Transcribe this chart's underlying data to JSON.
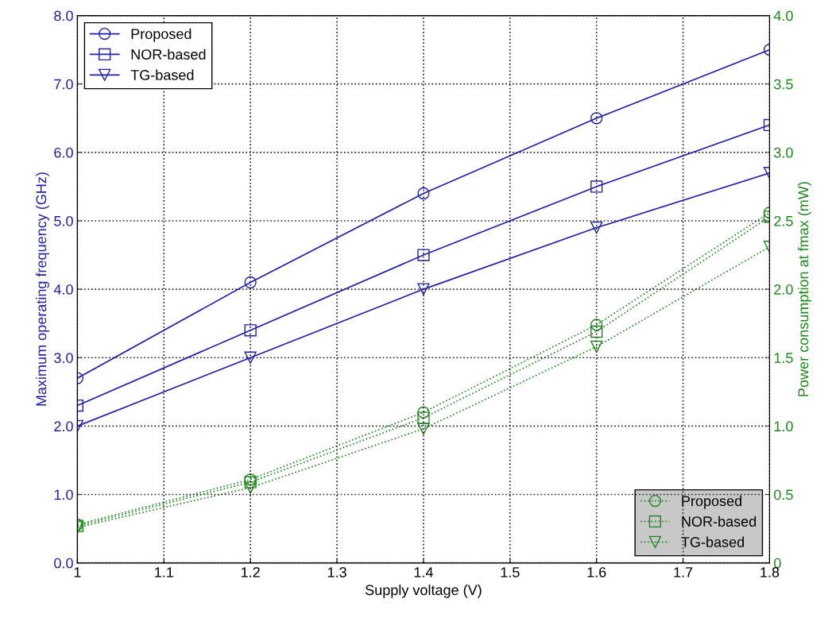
{
  "chart_data": {
    "type": "line",
    "xlabel": "Supply voltage (V)",
    "ylabel": "Maximum operating frequency (GHz)",
    "y2label": "Power consumption at fmax (mW)",
    "x": [
      1.0,
      1.2,
      1.4,
      1.6,
      1.8
    ],
    "series": [
      {
        "name": "Proposed",
        "color": "#1f1fb4",
        "marker": "circle",
        "line_style": "solid",
        "values": [
          2.7,
          4.1,
          5.4,
          6.5,
          7.5
        ]
      },
      {
        "name": "NOR-based",
        "color": "#1f1fb4",
        "marker": "square",
        "line_style": "solid",
        "values": [
          2.3,
          3.4,
          4.5,
          5.5,
          6.4
        ]
      },
      {
        "name": "TG-based",
        "color": "#1f1fb4",
        "marker": "triangle",
        "line_style": "solid",
        "values": [
          2.0,
          3.0,
          4.0,
          4.9,
          5.7
        ]
      },
      {
        "name": "Proposed",
        "color": "#1a8a1a",
        "marker": "circle",
        "line_style": "dotted",
        "axis": "y2",
        "values": [
          0.28,
          0.61,
          1.1,
          1.74,
          2.56
        ]
      },
      {
        "name": "NOR-based",
        "color": "#1a8a1a",
        "marker": "square",
        "line_style": "dotted",
        "axis": "y2",
        "values": [
          0.27,
          0.59,
          1.06,
          1.69,
          2.53
        ]
      },
      {
        "name": "TG-based",
        "color": "#1a8a1a",
        "marker": "triangle",
        "line_style": "dotted",
        "axis": "y2",
        "values": [
          0.26,
          0.55,
          0.98,
          1.58,
          2.31
        ]
      }
    ],
    "xlim": [
      1.0,
      1.8
    ],
    "xticks": [
      1,
      1.1,
      1.2,
      1.3,
      1.4,
      1.5,
      1.6,
      1.7,
      1.8
    ],
    "ylim": [
      0,
      8
    ],
    "yticks": [
      {
        "value": 0,
        "label": "0.0"
      },
      {
        "value": 1,
        "label": "1.0"
      },
      {
        "value": 2,
        "label": "2.0"
      },
      {
        "value": 3,
        "label": "3.0"
      },
      {
        "value": 4,
        "label": "4.0"
      },
      {
        "value": 5,
        "label": "5.0"
      },
      {
        "value": 6,
        "label": "6.0"
      },
      {
        "value": 7,
        "label": "7.0"
      },
      {
        "value": 8,
        "label": "8.0"
      }
    ],
    "y2lim": [
      0,
      4
    ],
    "y2ticks": [
      0,
      0.5,
      {
        "value": 1,
        "label": "1.0"
      },
      1.5,
      {
        "value": 2,
        "label": "2.0"
      },
      2.5,
      {
        "value": 3,
        "label": "3.0"
      },
      3.5,
      {
        "value": 4,
        "label": "4.0"
      }
    ],
    "grid": true,
    "legend": "top left"
  }
}
